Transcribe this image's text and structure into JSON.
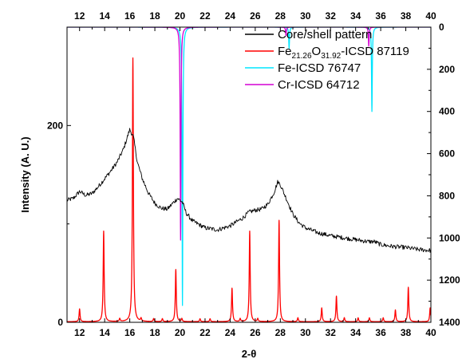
{
  "chart_data": {
    "type": "line",
    "xlabel": "2-θ",
    "ylabel": "Intensity (A. U.)",
    "x_range": [
      11,
      40
    ],
    "y_left_range": [
      0,
      300
    ],
    "y_right_range": [
      0,
      1400
    ],
    "y_right_inverted": true,
    "x_ticks": [
      "12",
      "14",
      "16",
      "18",
      "20",
      "22",
      "24",
      "26",
      "28",
      "30",
      "32",
      "34",
      "36",
      "38",
      "40"
    ],
    "y_left_ticks": [
      "0",
      "200"
    ],
    "y_right_ticks": [
      "0",
      "200",
      "400",
      "600",
      "800",
      "1000",
      "1200",
      "1400"
    ],
    "grid": false,
    "legend_position": "top-right",
    "series": [
      {
        "name": "Core/shell pattern",
        "color": "#000000",
        "axis": "left",
        "kind": "noisy-profile",
        "points": [
          [
            11,
            124
          ],
          [
            11.5,
            126
          ],
          [
            12,
            133
          ],
          [
            12.5,
            129
          ],
          [
            13,
            131
          ],
          [
            13.5,
            138
          ],
          [
            14,
            146
          ],
          [
            14.5,
            154
          ],
          [
            15,
            163
          ],
          [
            15.5,
            176
          ],
          [
            16,
            196
          ],
          [
            16.3,
            188
          ],
          [
            16.6,
            163
          ],
          [
            17,
            146
          ],
          [
            17.5,
            131
          ],
          [
            18,
            121
          ],
          [
            18.5,
            116
          ],
          [
            19,
            115
          ],
          [
            19.5,
            122
          ],
          [
            19.8,
            126
          ],
          [
            20.2,
            122
          ],
          [
            20.5,
            111
          ],
          [
            21,
            103
          ],
          [
            22,
            96
          ],
          [
            23,
            94
          ],
          [
            24,
            98
          ],
          [
            25,
            106
          ],
          [
            25.5,
            112
          ],
          [
            26,
            114
          ],
          [
            26.5,
            115
          ],
          [
            27,
            120
          ],
          [
            27.5,
            132
          ],
          [
            27.8,
            143
          ],
          [
            28,
            140
          ],
          [
            28.5,
            125
          ],
          [
            29,
            110
          ],
          [
            29.5,
            101
          ],
          [
            30,
            96
          ],
          [
            31,
            91
          ],
          [
            32,
            88
          ],
          [
            33,
            86
          ],
          [
            34,
            84
          ],
          [
            35,
            82
          ],
          [
            35.5,
            82
          ],
          [
            36,
            79
          ],
          [
            37,
            77
          ],
          [
            38,
            76
          ],
          [
            39,
            74
          ],
          [
            40,
            73
          ]
        ]
      },
      {
        "legend_parts": [
          "Fe",
          "21.26",
          "O",
          "31.92",
          "-ICSD 87119"
        ],
        "color": "#ff0000",
        "axis": "left",
        "kind": "peaks",
        "peaks": [
          [
            12,
            13
          ],
          [
            13.92,
            92
          ],
          [
            15.2,
            3
          ],
          [
            16.25,
            268
          ],
          [
            16.9,
            3
          ],
          [
            17.9,
            3
          ],
          [
            18.6,
            3
          ],
          [
            19.67,
            53
          ],
          [
            20.15,
            3
          ],
          [
            21.6,
            3
          ],
          [
            22.4,
            3
          ],
          [
            24.15,
            34
          ],
          [
            24.8,
            3
          ],
          [
            25.56,
            92
          ],
          [
            26.2,
            3
          ],
          [
            27.9,
            103
          ],
          [
            29.4,
            4
          ],
          [
            31.3,
            14
          ],
          [
            32.47,
            26
          ],
          [
            33.1,
            4
          ],
          [
            34.2,
            4
          ],
          [
            35.1,
            4
          ],
          [
            36.2,
            4
          ],
          [
            37.17,
            12
          ],
          [
            38.2,
            35
          ],
          [
            39.94,
            14
          ]
        ]
      },
      {
        "name": "Fe-ICSD 76747",
        "color": "#00e5ff",
        "axis": "right",
        "kind": "drops",
        "peaks": [
          [
            20.2,
            1320
          ],
          [
            28.7,
            100
          ],
          [
            35.3,
            400
          ]
        ]
      },
      {
        "name": "Cr-ICSD 64712",
        "color": "#d400d4",
        "axis": "right",
        "kind": "drops",
        "peaks": [
          [
            20.05,
            1010
          ],
          [
            28.45,
            40
          ],
          [
            35.05,
            90
          ]
        ]
      }
    ]
  }
}
